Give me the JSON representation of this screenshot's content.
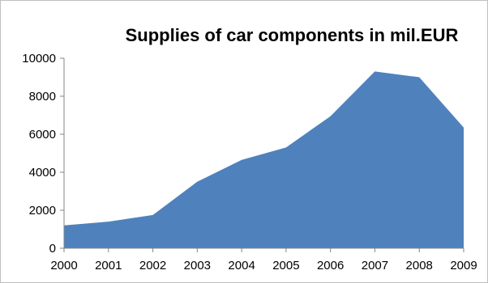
{
  "chart_data": {
    "type": "area",
    "title": "Supplies of car components in mil.EUR",
    "xlabel": "",
    "ylabel": "",
    "x": [
      "2000",
      "2001",
      "2002",
      "2003",
      "2004",
      "2005",
      "2006",
      "2007",
      "2008",
      "2009"
    ],
    "series": [
      {
        "values": [
          1200,
          1400,
          1750,
          3500,
          4650,
          5300,
          6950,
          9300,
          9000,
          6350
        ]
      }
    ],
    "ylim": [
      0,
      10000
    ],
    "yticks": [
      "0",
      "2000",
      "4000",
      "6000",
      "8000",
      "10000"
    ],
    "grid": false,
    "legend": "none",
    "colors": {
      "area": "#4f81bd",
      "axis": "#868686"
    }
  }
}
